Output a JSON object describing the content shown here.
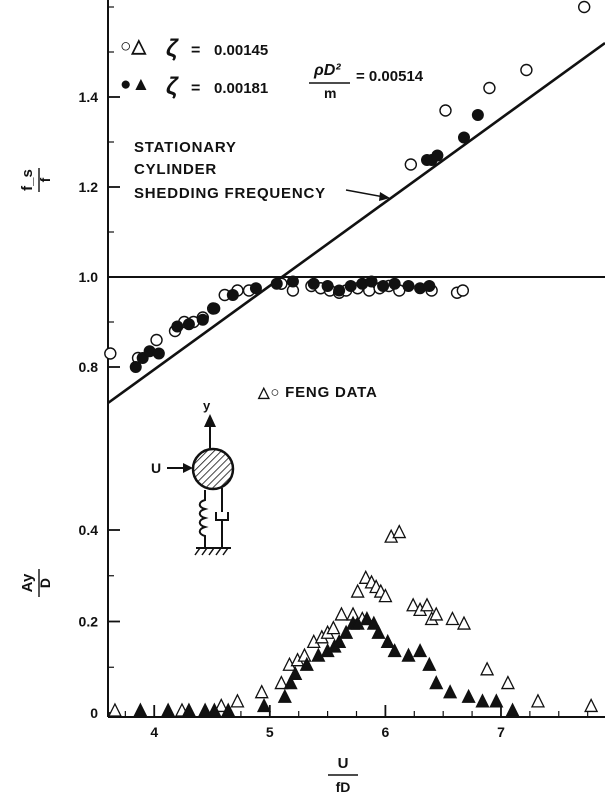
{
  "chart_data": {
    "type": "scatter",
    "x_axis": {
      "label_num": "U",
      "label_den": "fD",
      "range": [
        3.6,
        7.9
      ],
      "ticks": [
        "4",
        "5",
        "6",
        "7"
      ]
    },
    "upper_panel": {
      "y_label_num": "f_s",
      "y_label_den": "f",
      "y_range": [
        0.5,
        1.72
      ],
      "y_ticks": [
        "0.8",
        "1.0",
        "1.2",
        "1.4"
      ],
      "reference_line_y": 1.0,
      "shedding_line": {
        "x": [
          3.6,
          7.9
        ],
        "y": [
          0.72,
          1.52
        ]
      },
      "shedding_label": [
        "STATIONARY",
        "CYLINDER",
        "SHEDDING FREQUENCY"
      ],
      "series": [
        {
          "name": "ζ = 0.00145",
          "marker": "open-circle",
          "points": [
            [
              3.62,
              0.83
            ],
            [
              3.86,
              0.82
            ],
            [
              4.02,
              0.86
            ],
            [
              4.18,
              0.88
            ],
            [
              4.26,
              0.9
            ],
            [
              4.34,
              0.9
            ],
            [
              4.42,
              0.91
            ],
            [
              4.51,
              0.93
            ],
            [
              4.61,
              0.96
            ],
            [
              4.72,
              0.97
            ],
            [
              4.82,
              0.97
            ],
            [
              5.1,
              0.985
            ],
            [
              5.2,
              0.97
            ],
            [
              5.36,
              0.98
            ],
            [
              5.44,
              0.975
            ],
            [
              5.52,
              0.97
            ],
            [
              5.6,
              0.965
            ],
            [
              5.66,
              0.97
            ],
            [
              5.76,
              0.975
            ],
            [
              5.86,
              0.97
            ],
            [
              5.95,
              0.975
            ],
            [
              6.03,
              0.98
            ],
            [
              6.12,
              0.97
            ],
            [
              6.4,
              0.97
            ],
            [
              6.62,
              0.965
            ],
            [
              6.67,
              0.97
            ],
            [
              6.52,
              1.37
            ],
            [
              6.9,
              1.42
            ],
            [
              7.22,
              1.46
            ],
            [
              7.72,
              1.6
            ],
            [
              6.22,
              1.25
            ]
          ]
        },
        {
          "name": "ζ = 0.00181",
          "marker": "filled-circle",
          "points": [
            [
              3.84,
              0.8
            ],
            [
              3.9,
              0.82
            ],
            [
              3.96,
              0.835
            ],
            [
              4.04,
              0.83
            ],
            [
              4.2,
              0.89
            ],
            [
              4.3,
              0.895
            ],
            [
              4.42,
              0.905
            ],
            [
              4.52,
              0.93
            ],
            [
              4.68,
              0.96
            ],
            [
              4.88,
              0.975
            ],
            [
              5.06,
              0.985
            ],
            [
              5.2,
              0.99
            ],
            [
              5.38,
              0.985
            ],
            [
              5.5,
              0.98
            ],
            [
              5.6,
              0.97
            ],
            [
              5.7,
              0.98
            ],
            [
              5.8,
              0.985
            ],
            [
              5.88,
              0.99
            ],
            [
              5.98,
              0.98
            ],
            [
              6.08,
              0.985
            ],
            [
              6.2,
              0.98
            ],
            [
              6.3,
              0.975
            ],
            [
              6.38,
              0.98
            ],
            [
              6.36,
              1.26
            ],
            [
              6.4,
              1.26
            ],
            [
              6.45,
              1.27
            ],
            [
              6.68,
              1.31
            ],
            [
              6.8,
              1.36
            ]
          ]
        }
      ]
    },
    "lower_panel": {
      "y_label_num": "Ay",
      "y_label_den": "D",
      "y_range": [
        0,
        0.5
      ],
      "y_ticks": [
        "0",
        "0.2",
        "0.4"
      ],
      "series": [
        {
          "name": "ζ = 0.00145",
          "marker": "open-triangle",
          "points": [
            [
              3.66,
              0
            ],
            [
              4.24,
              0
            ],
            [
              4.58,
              0.01
            ],
            [
              4.72,
              0.02
            ],
            [
              4.93,
              0.04
            ],
            [
              5.1,
              0.06
            ],
            [
              5.17,
              0.1
            ],
            [
              5.24,
              0.11
            ],
            [
              5.3,
              0.12
            ],
            [
              5.38,
              0.15
            ],
            [
              5.45,
              0.16
            ],
            [
              5.5,
              0.17
            ],
            [
              5.55,
              0.18
            ],
            [
              5.62,
              0.21
            ],
            [
              5.72,
              0.21
            ],
            [
              5.76,
              0.26
            ],
            [
              5.8,
              0.2
            ],
            [
              5.83,
              0.29
            ],
            [
              5.88,
              0.28
            ],
            [
              5.92,
              0.27
            ],
            [
              5.96,
              0.26
            ],
            [
              6.0,
              0.25
            ],
            [
              6.05,
              0.38
            ],
            [
              6.12,
              0.39
            ],
            [
              6.24,
              0.23
            ],
            [
              6.3,
              0.22
            ],
            [
              6.36,
              0.23
            ],
            [
              6.4,
              0.2
            ],
            [
              6.44,
              0.21
            ],
            [
              6.58,
              0.2
            ],
            [
              6.68,
              0.19
            ],
            [
              6.88,
              0.09
            ],
            [
              7.06,
              0.06
            ],
            [
              7.32,
              0.02
            ],
            [
              7.78,
              0.01
            ]
          ]
        },
        {
          "name": "ζ = 0.00181",
          "marker": "filled-triangle",
          "points": [
            [
              3.88,
              0
            ],
            [
              4.12,
              0
            ],
            [
              4.3,
              0
            ],
            [
              4.44,
              0
            ],
            [
              4.52,
              0
            ],
            [
              4.64,
              0
            ],
            [
              4.95,
              0.01
            ],
            [
              5.13,
              0.03
            ],
            [
              5.18,
              0.06
            ],
            [
              5.22,
              0.08
            ],
            [
              5.32,
              0.1
            ],
            [
              5.42,
              0.12
            ],
            [
              5.5,
              0.13
            ],
            [
              5.56,
              0.14
            ],
            [
              5.6,
              0.15
            ],
            [
              5.66,
              0.17
            ],
            [
              5.72,
              0.19
            ],
            [
              5.76,
              0.19
            ],
            [
              5.84,
              0.2
            ],
            [
              5.9,
              0.19
            ],
            [
              5.94,
              0.17
            ],
            [
              6.02,
              0.15
            ],
            [
              6.08,
              0.13
            ],
            [
              6.2,
              0.12
            ],
            [
              6.3,
              0.13
            ],
            [
              6.38,
              0.1
            ],
            [
              6.44,
              0.06
            ],
            [
              6.56,
              0.04
            ],
            [
              6.72,
              0.03
            ],
            [
              6.84,
              0.02
            ],
            [
              6.96,
              0.02
            ],
            [
              7.1,
              0
            ]
          ]
        }
      ]
    },
    "legend": {
      "row1_symbols": "○△",
      "row2_symbols": "●▲",
      "zeta_symbol": "ζ",
      "equals": "=",
      "row1_value": "0.00145",
      "row2_value": "0.00181",
      "mass_param_num": "ρD²",
      "mass_param_den": "m",
      "mass_param_value": "= 0.00514"
    },
    "annotation_feng": "△○ FENG DATA",
    "diagram": {
      "flow_label": "U",
      "axis_label": "y"
    }
  }
}
